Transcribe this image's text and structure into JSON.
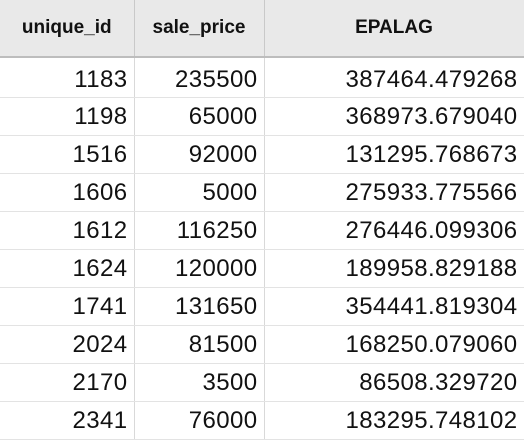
{
  "table": {
    "columns": [
      "unique_id",
      "sale_price",
      "EPALAG"
    ],
    "rows": [
      [
        "1183",
        "235500",
        "387464.479268"
      ],
      [
        "1198",
        "65000",
        "368973.679040"
      ],
      [
        "1516",
        "92000",
        "131295.768673"
      ],
      [
        "1606",
        "5000",
        "275933.775566"
      ],
      [
        "1612",
        "116250",
        "276446.099306"
      ],
      [
        "1624",
        "120000",
        "189958.829188"
      ],
      [
        "1741",
        "131650",
        "354441.819304"
      ],
      [
        "2024",
        "81500",
        "168250.079060"
      ],
      [
        "2170",
        "3500",
        "86508.329720"
      ],
      [
        "2341",
        "76000",
        "183295.748102"
      ]
    ]
  }
}
